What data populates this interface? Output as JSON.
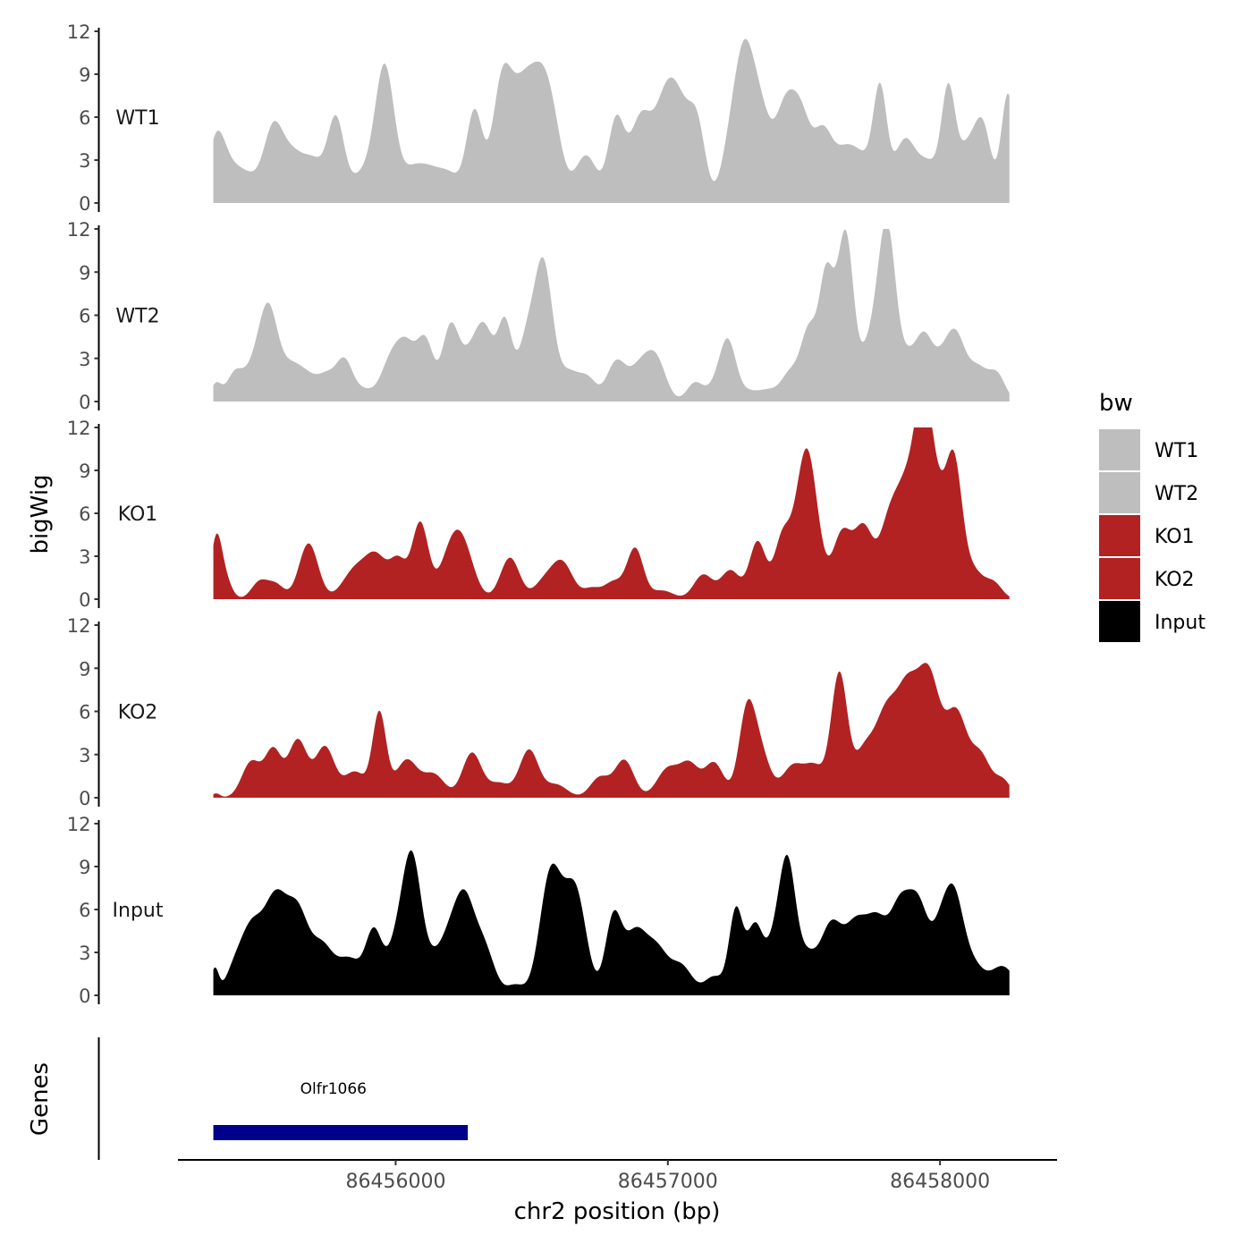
{
  "chart_data": {
    "type": "area",
    "ylabel": "bigWig",
    "xlabel": "chr2 position (bp)",
    "yticks": [
      0,
      3,
      6,
      9,
      12
    ],
    "ylim": [
      0,
      12
    ],
    "xlim": [
      86455200,
      86458430
    ],
    "xticks": [
      86456000,
      86457000,
      86458000
    ],
    "xtick_labels": [
      "86456000",
      "86457000",
      "86458000"
    ],
    "legend": {
      "title": "bw",
      "entries": [
        {
          "name": "WT1",
          "color": "#bebebe"
        },
        {
          "name": "WT2",
          "color": "#bebebe"
        },
        {
          "name": "KO1",
          "color": "#b22222"
        },
        {
          "name": "KO2",
          "color": "#b22222"
        },
        {
          "name": "Input",
          "color": "#000000"
        }
      ]
    },
    "genes_track": {
      "label": "Genes",
      "genes": [
        {
          "name": "Olfr1066",
          "start": 86455330,
          "end": 86456265,
          "color": "#00008b"
        }
      ]
    },
    "x_start": 86455330,
    "x_end": 86458255,
    "series": [
      {
        "name": "WT1",
        "color": "#bebebe",
        "peaks": [
          [
            86455340,
            3.4,
            30
          ],
          [
            86455380,
            2.2,
            45
          ],
          [
            86455460,
            1.6,
            45
          ],
          [
            86455550,
            4.8,
            35
          ],
          [
            86455620,
            3.0,
            40
          ],
          [
            86455700,
            2.7,
            40
          ],
          [
            86455780,
            5.5,
            30
          ],
          [
            86455880,
            2.0,
            50
          ],
          [
            86455960,
            9.0,
            35
          ],
          [
            86456060,
            2.2,
            45
          ],
          [
            86456130,
            1.6,
            40
          ],
          [
            86456200,
            1.8,
            40
          ],
          [
            86456290,
            6.3,
            30
          ],
          [
            86456390,
            8.0,
            35
          ],
          [
            86456460,
            6.2,
            40
          ],
          [
            86456520,
            5.4,
            40
          ],
          [
            86456570,
            5.4,
            40
          ],
          [
            86456700,
            3.3,
            40
          ],
          [
            86456810,
            5.6,
            30
          ],
          [
            86456900,
            5.8,
            40
          ],
          [
            86456990,
            6.2,
            40
          ],
          [
            86457050,
            5.2,
            40
          ],
          [
            86457110,
            4.5,
            30
          ],
          [
            86457230,
            3.5,
            35
          ],
          [
            86457280,
            8.2,
            35
          ],
          [
            86457340,
            6.0,
            40
          ],
          [
            86457430,
            5.8,
            35
          ],
          [
            86457490,
            5.5,
            35
          ],
          [
            86457570,
            4.6,
            35
          ],
          [
            86457650,
            3.2,
            40
          ],
          [
            86457720,
            2.6,
            40
          ],
          [
            86457780,
            7.2,
            25
          ],
          [
            86457870,
            4.3,
            40
          ],
          [
            86457960,
            2.6,
            40
          ],
          [
            86458030,
            7.0,
            25
          ],
          [
            86458100,
            3.8,
            40
          ],
          [
            86458160,
            4.5,
            30
          ],
          [
            86458250,
            7.6,
            25
          ]
        ]
      },
      {
        "name": "WT2",
        "color": "#bebebe",
        "peaks": [
          [
            86455340,
            1.2,
            20
          ],
          [
            86455410,
            2.0,
            30
          ],
          [
            86455470,
            1.5,
            30
          ],
          [
            86455530,
            6.4,
            35
          ],
          [
            86455610,
            2.0,
            40
          ],
          [
            86455680,
            1.6,
            45
          ],
          [
            86455750,
            1.3,
            30
          ],
          [
            86455810,
            2.7,
            30
          ],
          [
            86455880,
            0.8,
            40
          ],
          [
            86455980,
            2.6,
            35
          ],
          [
            86456040,
            3.6,
            35
          ],
          [
            86456110,
            4.0,
            30
          ],
          [
            86456200,
            4.8,
            30
          ],
          [
            86456270,
            2.8,
            40
          ],
          [
            86456330,
            4.4,
            35
          ],
          [
            86456400,
            4.7,
            25
          ],
          [
            86456440,
            1.4,
            30
          ],
          [
            86456480,
            2.7,
            25
          ],
          [
            86456540,
            9.8,
            35
          ],
          [
            86456640,
            2.0,
            40
          ],
          [
            86456710,
            1.3,
            30
          ],
          [
            86456810,
            2.7,
            35
          ],
          [
            86456900,
            2.4,
            40
          ],
          [
            86456960,
            2.5,
            35
          ],
          [
            86457100,
            1.3,
            30
          ],
          [
            86457170,
            0.8,
            30
          ],
          [
            86457220,
            4.1,
            30
          ],
          [
            86457300,
            0.7,
            40
          ],
          [
            86457370,
            0.6,
            30
          ],
          [
            86457450,
            2.0,
            35
          ],
          [
            86457520,
            4.8,
            30
          ],
          [
            86457580,
            7.4,
            25
          ],
          [
            86457630,
            5.8,
            30
          ],
          [
            86457660,
            7.4,
            25
          ],
          [
            86457720,
            2.5,
            35
          ],
          [
            86457780,
            4.8,
            35
          ],
          [
            86457810,
            8.6,
            30
          ],
          [
            86457880,
            2.8,
            35
          ],
          [
            86457940,
            3.4,
            30
          ],
          [
            86458000,
            2.5,
            40
          ],
          [
            86458060,
            4.0,
            35
          ],
          [
            86458140,
            2.2,
            35
          ],
          [
            86458210,
            1.8,
            30
          ]
        ]
      },
      {
        "name": "KO1",
        "color": "#b22222",
        "peaks": [
          [
            86455340,
            3.8,
            20
          ],
          [
            86455370,
            1.5,
            25
          ],
          [
            86455500,
            1.2,
            30
          ],
          [
            86455560,
            1.0,
            30
          ],
          [
            86455680,
            3.9,
            35
          ],
          [
            86455850,
            2.0,
            45
          ],
          [
            86455930,
            2.8,
            40
          ],
          [
            86456010,
            2.5,
            30
          ],
          [
            86456090,
            5.3,
            30
          ],
          [
            86456200,
            2.8,
            40
          ],
          [
            86456250,
            3.1,
            40
          ],
          [
            86456420,
            2.9,
            35
          ],
          [
            86456540,
            1.0,
            35
          ],
          [
            86456610,
            2.6,
            40
          ],
          [
            86456720,
            0.7,
            30
          ],
          [
            86456800,
            1.2,
            35
          ],
          [
            86456880,
            3.5,
            30
          ],
          [
            86456980,
            0.6,
            40
          ],
          [
            86457130,
            1.7,
            35
          ],
          [
            86457230,
            2.0,
            35
          ],
          [
            86457330,
            4.0,
            30
          ],
          [
            86457420,
            4.0,
            30
          ],
          [
            86457510,
            10.5,
            40
          ],
          [
            86457640,
            4.5,
            35
          ],
          [
            86457720,
            4.8,
            35
          ],
          [
            86457810,
            4.6,
            35
          ],
          [
            86457880,
            7.5,
            40
          ],
          [
            86457940,
            11.5,
            30
          ],
          [
            86457990,
            5.5,
            30
          ],
          [
            86458050,
            9.2,
            30
          ],
          [
            86458120,
            2.0,
            40
          ],
          [
            86458200,
            1.0,
            30
          ]
        ]
      },
      {
        "name": "KO2",
        "color": "#b22222",
        "peaks": [
          [
            86455340,
            0.3,
            15
          ],
          [
            86455470,
            2.5,
            35
          ],
          [
            86455550,
            3.2,
            30
          ],
          [
            86455640,
            4.0,
            35
          ],
          [
            86455740,
            3.5,
            35
          ],
          [
            86455850,
            1.8,
            40
          ],
          [
            86455940,
            5.8,
            25
          ],
          [
            86456040,
            2.6,
            40
          ],
          [
            86456140,
            1.6,
            40
          ],
          [
            86456280,
            3.1,
            35
          ],
          [
            86456380,
            1.0,
            40
          ],
          [
            86456490,
            3.3,
            35
          ],
          [
            86456590,
            0.9,
            40
          ],
          [
            86456750,
            1.4,
            35
          ],
          [
            86456840,
            2.6,
            35
          ],
          [
            86457000,
            2.0,
            40
          ],
          [
            86457080,
            2.2,
            35
          ],
          [
            86457170,
            2.4,
            35
          ],
          [
            86457290,
            5.6,
            30
          ],
          [
            86457340,
            3.0,
            35
          ],
          [
            86457460,
            2.2,
            40
          ],
          [
            86457540,
            2.0,
            35
          ],
          [
            86457630,
            8.6,
            30
          ],
          [
            86457720,
            3.0,
            35
          ],
          [
            86457800,
            5.5,
            40
          ],
          [
            86457880,
            6.8,
            40
          ],
          [
            86457960,
            8.0,
            40
          ],
          [
            86458060,
            5.8,
            40
          ],
          [
            86458150,
            2.8,
            35
          ],
          [
            86458230,
            1.2,
            30
          ]
        ]
      },
      {
        "name": "Input",
        "color": "#000000",
        "peaks": [
          [
            86455335,
            1.8,
            15
          ],
          [
            86455400,
            1.0,
            30
          ],
          [
            86455470,
            4.8,
            45
          ],
          [
            86455560,
            6.0,
            40
          ],
          [
            86455640,
            5.5,
            40
          ],
          [
            86455730,
            3.2,
            40
          ],
          [
            86455830,
            2.5,
            45
          ],
          [
            86455920,
            4.2,
            30
          ],
          [
            86456000,
            3.0,
            35
          ],
          [
            86456060,
            9.2,
            35
          ],
          [
            86456150,
            2.5,
            40
          ],
          [
            86456200,
            2.2,
            30
          ],
          [
            86456250,
            6.0,
            35
          ],
          [
            86456320,
            3.5,
            40
          ],
          [
            86456440,
            0.7,
            30
          ],
          [
            86456570,
            8.5,
            40
          ],
          [
            86456660,
            7.2,
            40
          ],
          [
            86456800,
            5.3,
            30
          ],
          [
            86456880,
            4.2,
            40
          ],
          [
            86456960,
            3.0,
            40
          ],
          [
            86457050,
            2.0,
            40
          ],
          [
            86457170,
            1.3,
            35
          ],
          [
            86457250,
            5.8,
            25
          ],
          [
            86457320,
            4.8,
            30
          ],
          [
            86457390,
            3.0,
            30
          ],
          [
            86457440,
            8.7,
            30
          ],
          [
            86457510,
            2.5,
            35
          ],
          [
            86457600,
            4.8,
            40
          ],
          [
            86457690,
            4.5,
            40
          ],
          [
            86457770,
            4.8,
            40
          ],
          [
            86457850,
            5.0,
            35
          ],
          [
            86457920,
            6.3,
            40
          ],
          [
            86458000,
            3.0,
            30
          ],
          [
            86458050,
            6.5,
            35
          ],
          [
            86458120,
            2.0,
            40
          ],
          [
            86458230,
            2.0,
            45
          ]
        ]
      }
    ]
  }
}
